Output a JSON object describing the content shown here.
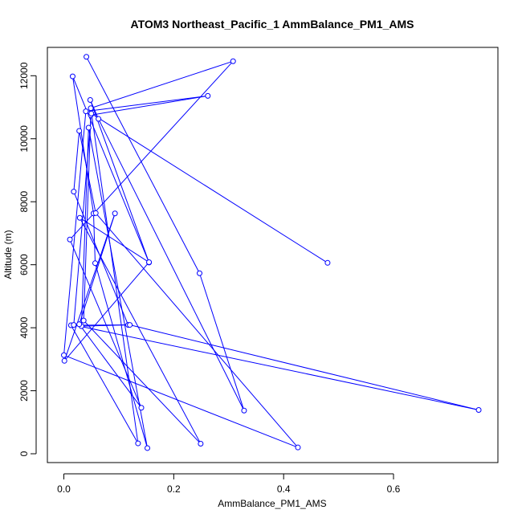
{
  "chart_data": {
    "type": "line",
    "title": "ATOM3 Northeast_Pacific_1 AmmBalance_PM1_AMS",
    "xlabel": "AmmBalance_PM1_AMS",
    "ylabel": "Altitude (m)",
    "xlim": [
      -0.03,
      0.79
    ],
    "ylim": [
      -280,
      12900
    ],
    "xticks": [
      0.0,
      0.2,
      0.4,
      0.6
    ],
    "xtick_labels": [
      "0.0",
      "0.2",
      "0.4",
      "0.6"
    ],
    "yticks": [
      0,
      2000,
      4000,
      6000,
      8000,
      10000,
      12000
    ],
    "ytick_labels": [
      "0",
      "2000",
      "4000",
      "6000",
      "8000",
      "10000",
      "12000"
    ],
    "grid": false,
    "legend": "none",
    "color": "#0000ff",
    "series": [
      {
        "x": [
          0.041,
          0.247,
          0.328,
          0.063,
          0.048,
          0.155,
          0.016,
          0.054,
          0.057,
          0.152,
          0.045,
          0.032,
          0.117,
          0.018,
          0.028,
          0.058,
          0.426,
          0.0,
          0.04,
          0.262,
          0.049,
          0.036,
          0.249,
          0.029,
          0.155,
          0.001,
          0.093,
          0.028,
          0.141,
          0.011,
          0.308,
          0.049,
          0.135,
          0.013,
          0.12,
          0.755,
          0.018,
          0.05,
          0.48
        ],
        "y": [
          12600,
          5730,
          1370,
          10630,
          11230,
          6070,
          11980,
          7630,
          6050,
          180,
          10350,
          4050,
          4090,
          8320,
          10250,
          7640,
          200,
          3130,
          10870,
          11360,
          10750,
          4230,
          320,
          7490,
          6080,
          2950,
          7630,
          4110,
          1460,
          6800,
          12460,
          10970,
          330,
          4080,
          4090,
          1390,
          4090,
          10800,
          6060
        ]
      }
    ]
  }
}
